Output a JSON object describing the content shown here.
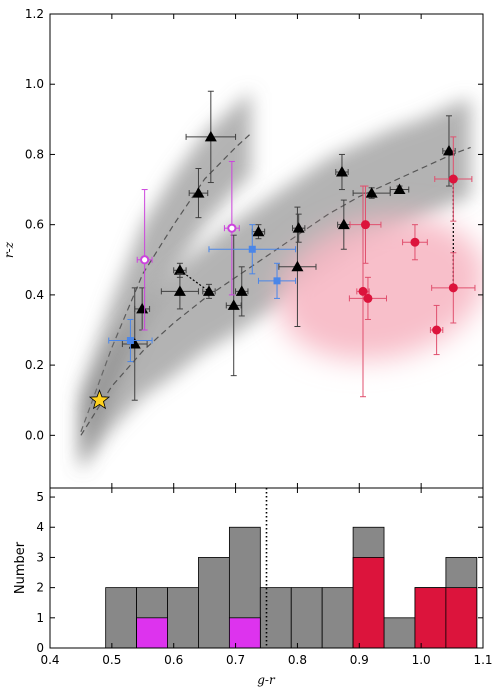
{
  "chart_data": [
    {
      "type": "scatter",
      "title": "",
      "xlabel": "",
      "ylabel": "r-z",
      "xlim": [
        0.4,
        1.1
      ],
      "ylim": [
        -0.15,
        1.2
      ],
      "yticks": [
        "0.0",
        "0.2",
        "0.4",
        "0.6",
        "0.8",
        "1.0",
        "1.2"
      ],
      "grid": false,
      "bands": [
        {
          "name": "upper sequence",
          "color": "#808080",
          "x": [
            0.45,
            0.5,
            0.55,
            0.6,
            0.65,
            0.7,
            0.725
          ],
          "y": [
            0.01,
            0.25,
            0.46,
            0.6,
            0.73,
            0.82,
            0.86
          ],
          "halfwidth": [
            0.12,
            0.13,
            0.14,
            0.14,
            0.13,
            0.12,
            0.12
          ]
        },
        {
          "name": "lower sequence",
          "color": "#808080",
          "x": [
            0.45,
            0.5,
            0.55,
            0.6,
            0.65,
            0.7,
            0.75,
            0.8,
            0.85,
            0.9,
            0.95,
            1.0,
            1.05,
            1.08
          ],
          "y": [
            0.0,
            0.14,
            0.24,
            0.32,
            0.39,
            0.45,
            0.51,
            0.57,
            0.63,
            0.68,
            0.72,
            0.76,
            0.8,
            0.82
          ],
          "halfwidth": [
            0.09,
            0.12,
            0.13,
            0.15,
            0.15,
            0.16,
            0.16,
            0.16,
            0.16,
            0.15,
            0.15,
            0.14,
            0.14,
            0.14
          ]
        }
      ],
      "ellipse": {
        "cx": 0.935,
        "cy": 0.42,
        "rx": 0.17,
        "ry": 0.2,
        "color": "#f7b8c4"
      },
      "star": {
        "x": 0.48,
        "y": 0.1,
        "color": "#ffd21e"
      },
      "series": [
        {
          "marker": "triangle",
          "color": "#000000",
          "errcolor": "#404040",
          "points": [
            {
              "x": 0.537,
              "y": 0.26,
              "xerr": 0.02,
              "yerr": 0.16
            },
            {
              "x": 0.549,
              "y": 0.36,
              "xerr": 0.012,
              "yerr": 0.06
            },
            {
              "x": 0.64,
              "y": 0.69,
              "xerr": 0.015,
              "yerr": 0.07
            },
            {
              "x": 0.66,
              "y": 0.85,
              "xerr": 0.04,
              "yerr": 0.13
            },
            {
              "x": 0.61,
              "y": 0.47,
              "xerr": 0.01,
              "yerr": 0.02
            },
            {
              "x": 0.61,
              "y": 0.41,
              "xerr": 0.03,
              "yerr": 0.05
            },
            {
              "x": 0.657,
              "y": 0.41,
              "xerr": 0.01,
              "yerr": 0.02
            },
            {
              "x": 0.697,
              "y": 0.37,
              "xerr": 0.012,
              "yerr": 0.2
            },
            {
              "x": 0.71,
              "y": 0.41,
              "xerr": 0.01,
              "yerr": 0.07
            },
            {
              "x": 0.737,
              "y": 0.58,
              "xerr": 0.01,
              "yerr": 0.02
            },
            {
              "x": 0.8,
              "y": 0.48,
              "xerr": 0.03,
              "yerr": 0.17
            },
            {
              "x": 0.802,
              "y": 0.59,
              "xerr": 0.01,
              "yerr": 0.04
            },
            {
              "x": 0.872,
              "y": 0.75,
              "xerr": 0.01,
              "yerr": 0.05
            },
            {
              "x": 0.875,
              "y": 0.6,
              "xerr": 0.01,
              "yerr": 0.07
            },
            {
              "x": 0.92,
              "y": 0.69,
              "xerr": 0.03,
              "yerr": 0.015
            },
            {
              "x": 0.965,
              "y": 0.7,
              "xerr": 0.015,
              "yerr": 0.01
            },
            {
              "x": 1.045,
              "y": 0.81,
              "xerr": 0.01,
              "yerr": 0.1
            }
          ]
        },
        {
          "marker": "square",
          "color": "#4a86e8",
          "errcolor": "#4a86e8",
          "points": [
            {
              "x": 0.53,
              "y": 0.27,
              "xerr": 0.035,
              "yerr": 0.06
            },
            {
              "x": 0.727,
              "y": 0.53,
              "xerr": 0.07,
              "yerr": 0.07
            },
            {
              "x": 0.767,
              "y": 0.44,
              "xerr": 0.03,
              "yerr": 0.05
            }
          ]
        },
        {
          "marker": "open-circle",
          "color": "#cc44dd",
          "errcolor": "#cc44dd",
          "points": [
            {
              "x": 0.553,
              "y": 0.5,
              "xerr": 0.012,
              "yerr": 0.2
            },
            {
              "x": 0.694,
              "y": 0.59,
              "xerr": 0.012,
              "yerr": 0.19
            }
          ]
        },
        {
          "marker": "circle",
          "color": "#dc143c",
          "errcolor": "#e0506e",
          "points": [
            {
              "x": 0.906,
              "y": 0.41,
              "xerr": 0.01,
              "yerr": 0.3
            },
            {
              "x": 0.91,
              "y": 0.6,
              "xerr": 0.025,
              "yerr": 0.11
            },
            {
              "x": 0.914,
              "y": 0.39,
              "xerr": 0.03,
              "yerr": 0.06
            },
            {
              "x": 0.99,
              "y": 0.55,
              "xerr": 0.02,
              "yerr": 0.05
            },
            {
              "x": 1.025,
              "y": 0.3,
              "xerr": 0.01,
              "yerr": 0.07
            },
            {
              "x": 1.052,
              "y": 0.73,
              "xerr": 0.03,
              "yerr": 0.12
            },
            {
              "x": 1.052,
              "y": 0.42,
              "xerr": 0.035,
              "yerr": 0.1
            }
          ]
        }
      ],
      "links": [
        {
          "style": "dotted",
          "from": [
            0.61,
            0.47
          ],
          "to": [
            0.657,
            0.41
          ]
        },
        {
          "style": "dotted",
          "from": [
            1.052,
            0.73
          ],
          "to": [
            1.052,
            0.42
          ]
        }
      ]
    },
    {
      "type": "bar",
      "title": "",
      "xlabel": "g-r",
      "ylabel": "Number",
      "xlim": [
        0.4,
        1.1
      ],
      "ylim": [
        0,
        5.3
      ],
      "xticks": [
        "0.4",
        "0.5",
        "0.6",
        "0.7",
        "0.8",
        "0.9",
        "1.0",
        "1.1"
      ],
      "yticks": [
        "0",
        "1",
        "2",
        "3",
        "4",
        "5"
      ],
      "bin_edges": [
        0.49,
        0.54,
        0.59,
        0.64,
        0.69,
        0.74,
        0.79,
        0.84,
        0.89,
        0.94,
        0.99,
        1.04,
        1.09
      ],
      "series": [
        {
          "color": "#888888",
          "values": [
            2,
            2,
            2,
            3,
            4,
            2,
            2,
            2,
            4,
            1,
            2,
            3
          ]
        },
        {
          "color": "#dd33ee",
          "values": [
            0,
            1,
            0,
            0,
            1,
            0,
            0,
            0,
            0,
            0,
            0,
            0
          ]
        },
        {
          "color": "#dc143c",
          "values": [
            0,
            0,
            0,
            0,
            0,
            0,
            0,
            0,
            3,
            0,
            2,
            2
          ]
        }
      ],
      "vline": {
        "x": 0.75,
        "style": "dotted"
      }
    }
  ]
}
